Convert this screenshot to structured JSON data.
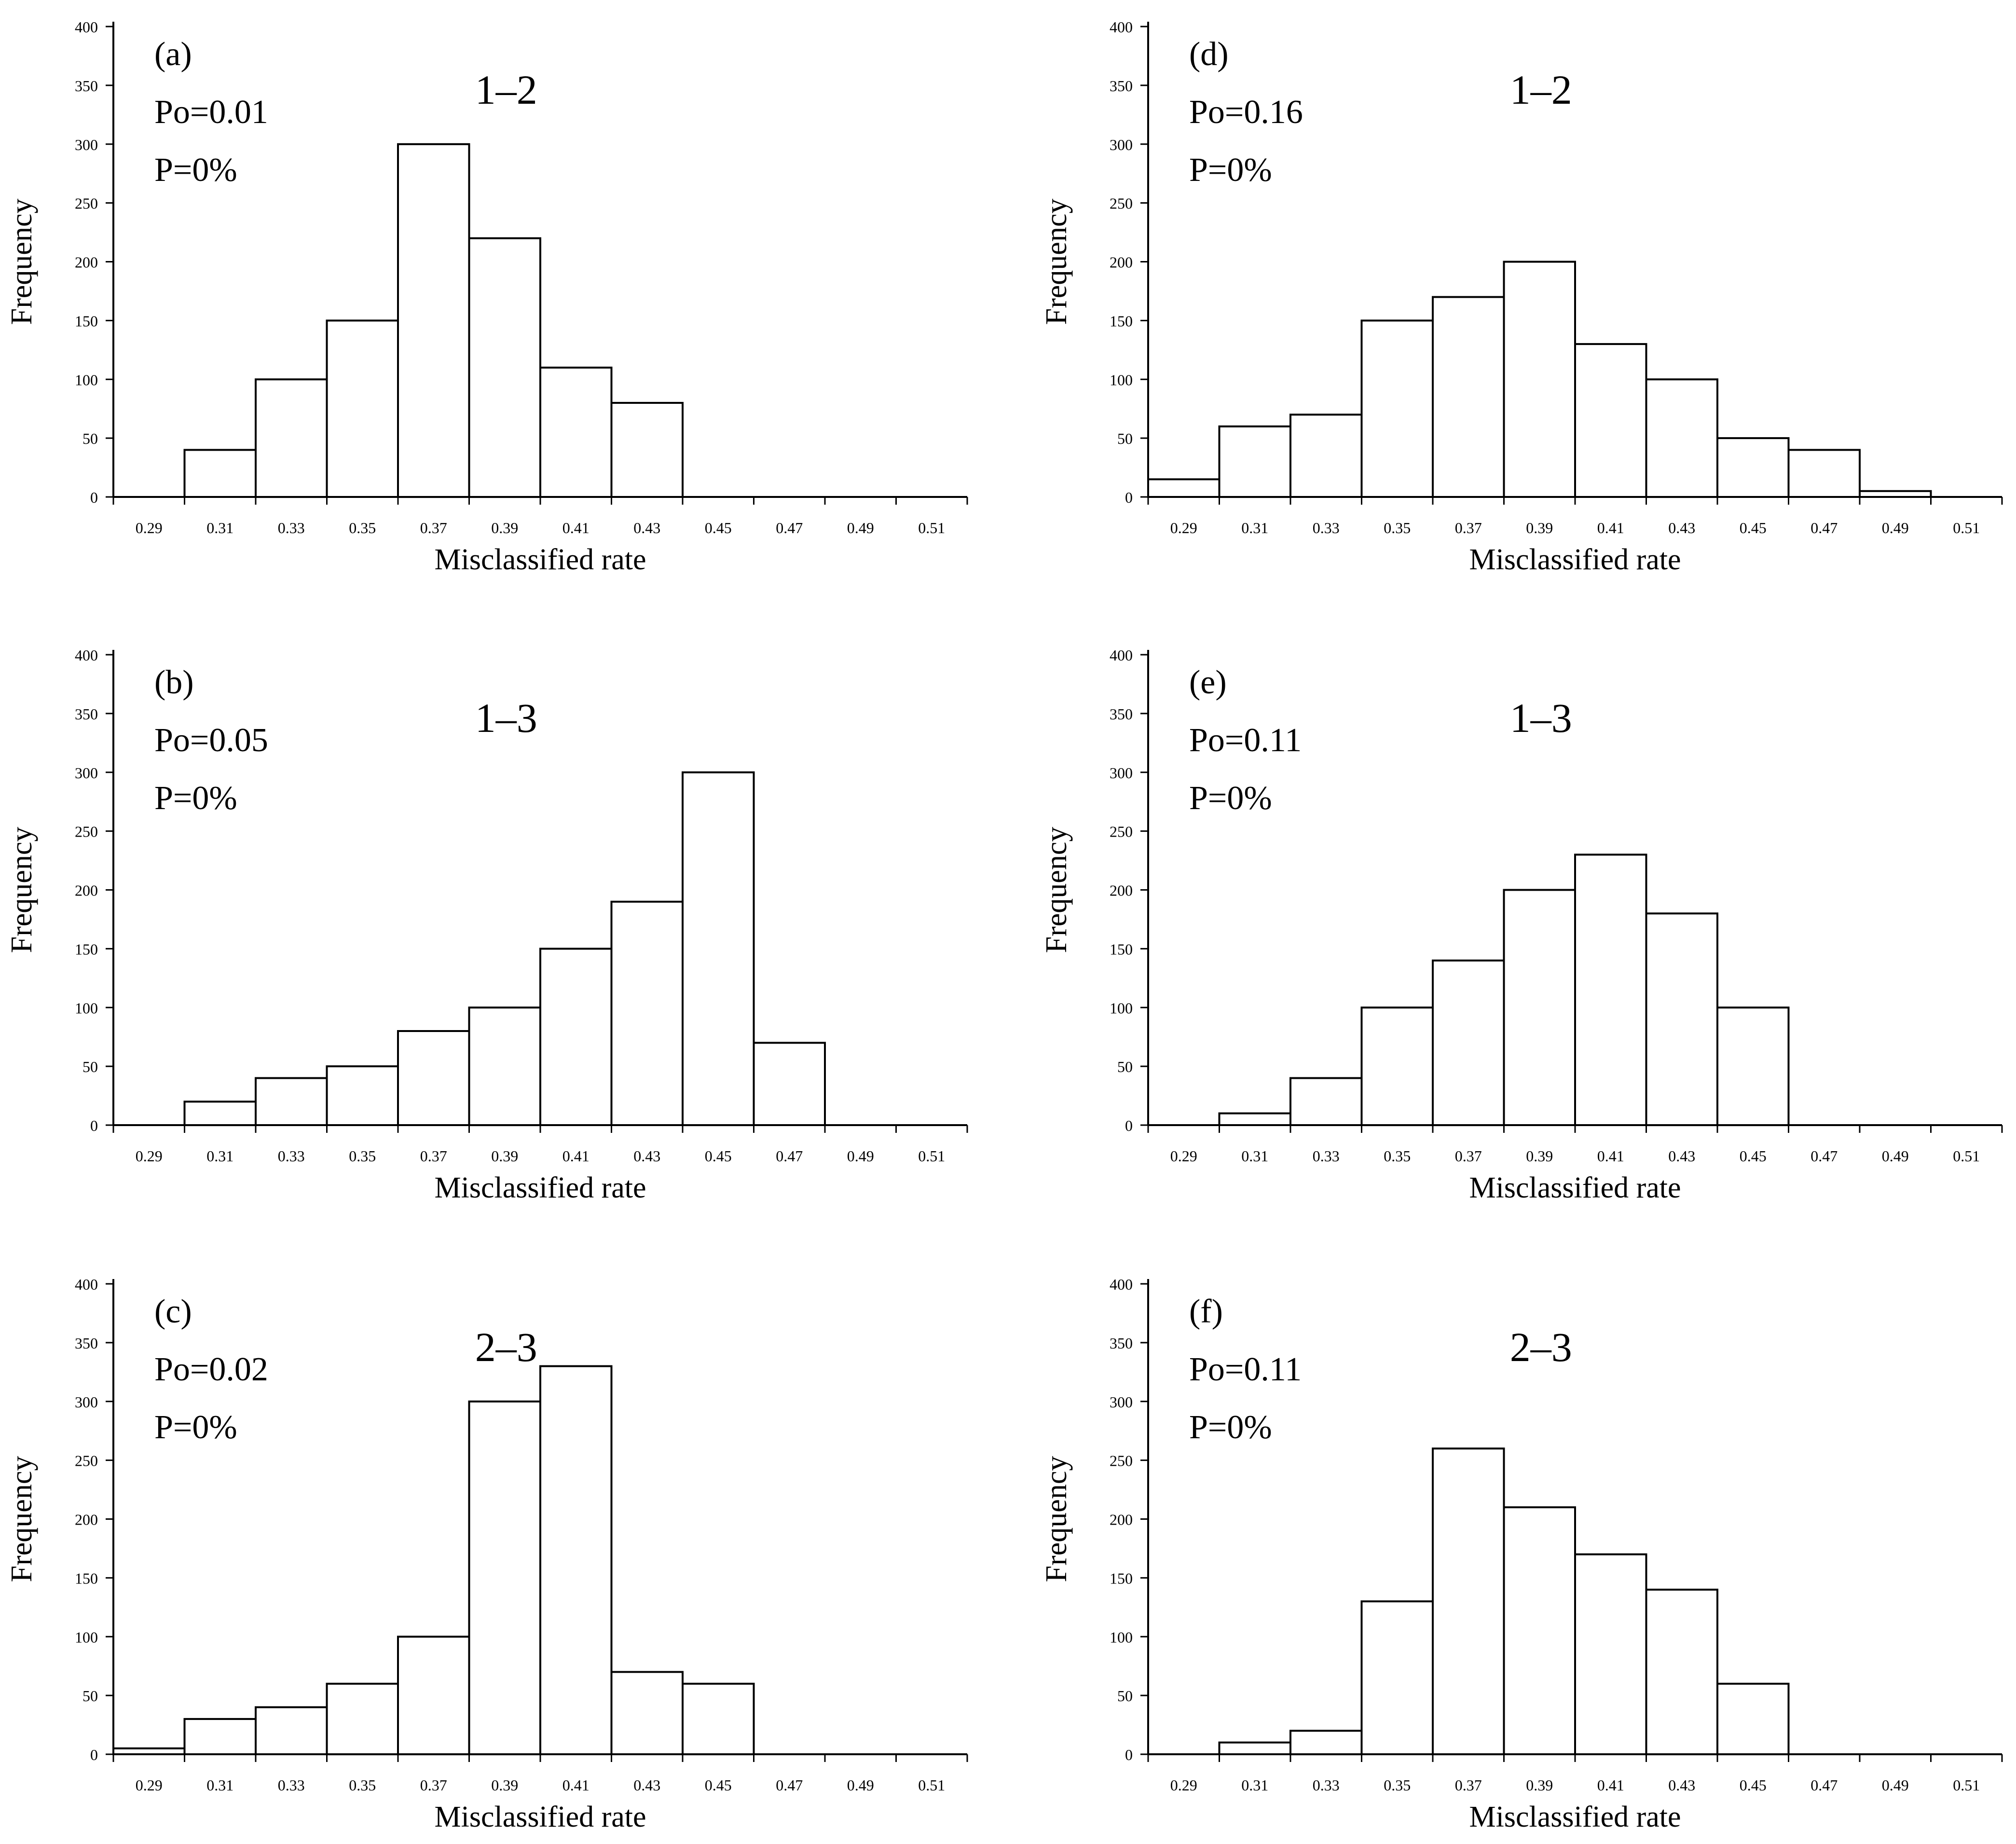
{
  "chart_data": [
    {
      "type": "bar",
      "panel_label": "(a)",
      "title": "1–2",
      "annotations": [
        "Po=0.01",
        "P=0%"
      ],
      "xlabel": "Misclassified rate",
      "ylabel": "Frequency",
      "categories": [
        "0.29",
        "0.31",
        "0.33",
        "0.35",
        "0.37",
        "0.39",
        "0.41",
        "0.43",
        "0.45",
        "0.47",
        "0.49",
        "0.51"
      ],
      "yticks": [
        "0",
        "50",
        "100",
        "150",
        "200",
        "250",
        "300",
        "350",
        "400"
      ],
      "values": [
        0,
        40,
        100,
        150,
        300,
        220,
        110,
        80,
        0,
        0,
        0,
        0
      ],
      "ylim": [
        0,
        400
      ]
    },
    {
      "type": "bar",
      "panel_label": "(b)",
      "title": "1–3",
      "annotations": [
        "Po=0.05",
        "P=0%"
      ],
      "xlabel": "Misclassified rate",
      "ylabel": "Frequency",
      "categories": [
        "0.29",
        "0.31",
        "0.33",
        "0.35",
        "0.37",
        "0.39",
        "0.41",
        "0.43",
        "0.45",
        "0.47",
        "0.49",
        "0.51"
      ],
      "yticks": [
        "0",
        "50",
        "100",
        "150",
        "200",
        "250",
        "300",
        "350",
        "400"
      ],
      "values": [
        0,
        20,
        40,
        50,
        80,
        100,
        150,
        190,
        300,
        70,
        0,
        0
      ],
      "ylim": [
        0,
        400
      ]
    },
    {
      "type": "bar",
      "panel_label": "(c)",
      "title": "2–3",
      "annotations": [
        "Po=0.02",
        "P=0%"
      ],
      "xlabel": "Misclassified rate",
      "ylabel": "Frequency",
      "categories": [
        "0.29",
        "0.31",
        "0.33",
        "0.35",
        "0.37",
        "0.39",
        "0.41",
        "0.43",
        "0.45",
        "0.47",
        "0.49",
        "0.51"
      ],
      "yticks": [
        "0",
        "50",
        "100",
        "150",
        "200",
        "250",
        "300",
        "350",
        "400"
      ],
      "values": [
        5,
        30,
        40,
        60,
        100,
        300,
        330,
        70,
        60,
        0,
        0,
        0
      ],
      "ylim": [
        0,
        400
      ]
    },
    {
      "type": "bar",
      "panel_label": "(d)",
      "title": "1–2",
      "annotations": [
        "Po=0.16",
        "P=0%"
      ],
      "xlabel": "Misclassified rate",
      "ylabel": "Frequency",
      "categories": [
        "0.29",
        "0.31",
        "0.33",
        "0.35",
        "0.37",
        "0.39",
        "0.41",
        "0.43",
        "0.45",
        "0.47",
        "0.49",
        "0.51"
      ],
      "yticks": [
        "0",
        "50",
        "100",
        "150",
        "200",
        "250",
        "300",
        "350",
        "400"
      ],
      "values": [
        15,
        60,
        70,
        150,
        170,
        200,
        130,
        100,
        50,
        40,
        5,
        0
      ],
      "ylim": [
        0,
        400
      ]
    },
    {
      "type": "bar",
      "panel_label": "(e)",
      "title": "1–3",
      "annotations": [
        "Po=0.11",
        "P=0%"
      ],
      "xlabel": "Misclassified rate",
      "ylabel": "Frequency",
      "categories": [
        "0.29",
        "0.31",
        "0.33",
        "0.35",
        "0.37",
        "0.39",
        "0.41",
        "0.43",
        "0.45",
        "0.47",
        "0.49",
        "0.51"
      ],
      "yticks": [
        "0",
        "50",
        "100",
        "150",
        "200",
        "250",
        "300",
        "350",
        "400"
      ],
      "values": [
        0,
        10,
        40,
        100,
        140,
        200,
        230,
        180,
        100,
        0,
        0,
        0
      ],
      "ylim": [
        0,
        400
      ]
    },
    {
      "type": "bar",
      "panel_label": "(f)",
      "title": "2–3",
      "annotations": [
        "Po=0.11",
        "P=0%"
      ],
      "xlabel": "Misclassified rate",
      "ylabel": "Frequency",
      "categories": [
        "0.29",
        "0.31",
        "0.33",
        "0.35",
        "0.37",
        "0.39",
        "0.41",
        "0.43",
        "0.45",
        "0.47",
        "0.49",
        "0.51"
      ],
      "yticks": [
        "0",
        "50",
        "100",
        "150",
        "200",
        "250",
        "300",
        "350",
        "400"
      ],
      "values": [
        0,
        10,
        20,
        130,
        260,
        210,
        170,
        140,
        60,
        0,
        0,
        0
      ],
      "ylim": [
        0,
        400
      ]
    }
  ]
}
